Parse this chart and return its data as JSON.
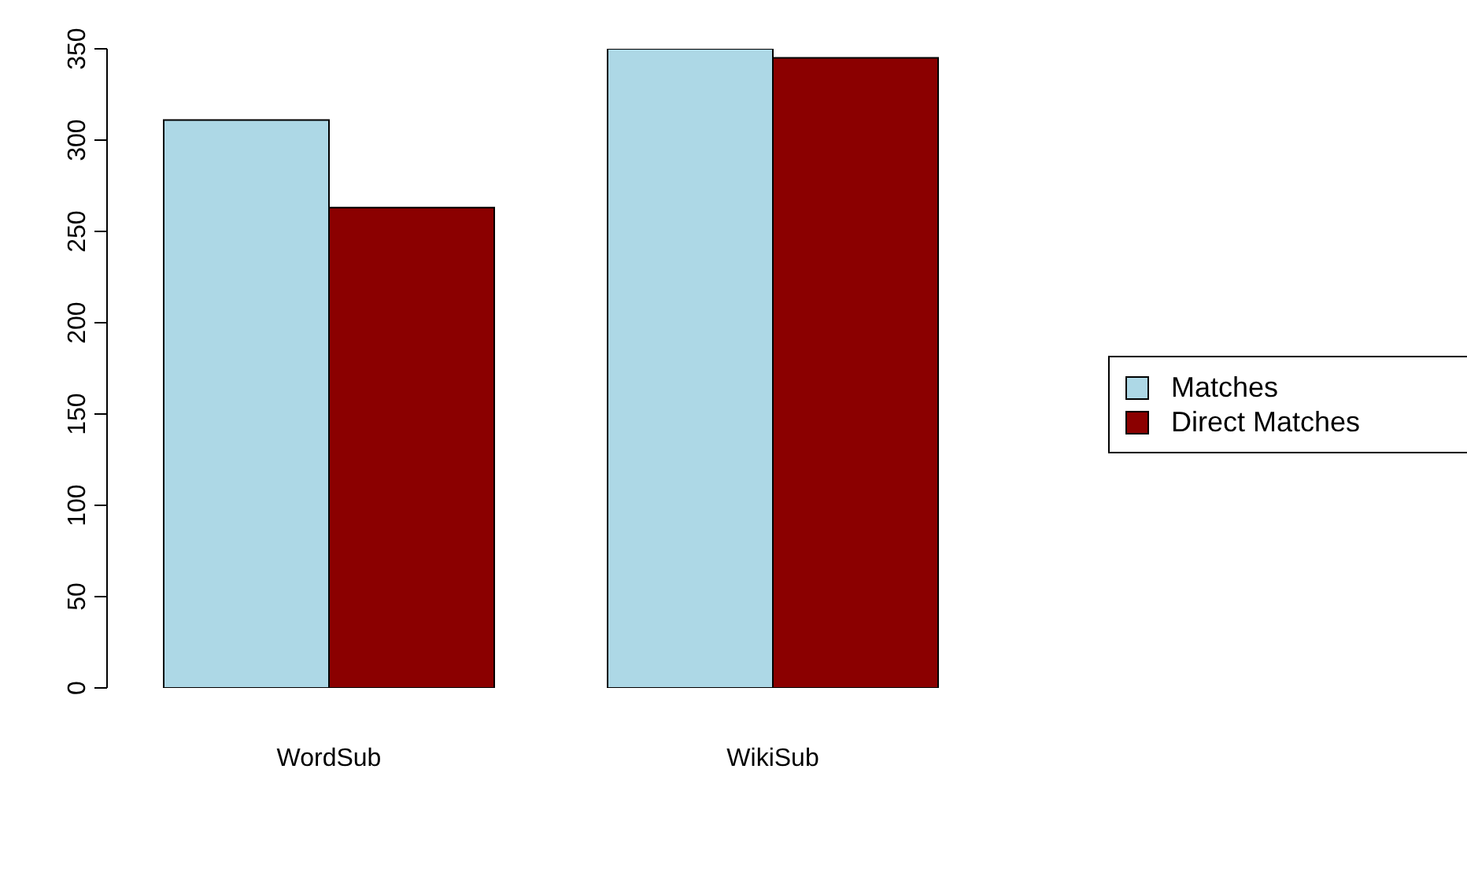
{
  "chart_data": {
    "type": "bar",
    "categories": [
      "WordSub",
      "WikiSub"
    ],
    "series": [
      {
        "name": "Matches",
        "color": "#add8e6",
        "values": [
          311,
          350
        ]
      },
      {
        "name": "Direct Matches",
        "color": "#8b0000",
        "values": [
          263,
          345
        ]
      }
    ],
    "ylim": [
      0,
      350
    ],
    "yticks": [
      0,
      50,
      100,
      150,
      200,
      250,
      300,
      350
    ],
    "grid": false,
    "legend": "right"
  }
}
